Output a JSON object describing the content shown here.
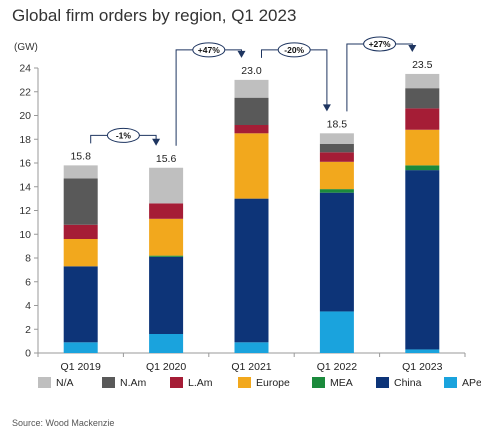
{
  "chart_data": {
    "type": "bar",
    "stacked": true,
    "title": "Global firm orders by region, Q1 2023",
    "ylabel": "(GW)",
    "xlabel": "",
    "ylim": [
      0,
      24
    ],
    "yticks": [
      0,
      2,
      4,
      6,
      8,
      10,
      12,
      14,
      16,
      18,
      20,
      22,
      24
    ],
    "grid": false,
    "legend_position": "bottom",
    "categories": [
      "Q1 2019",
      "Q1 2020",
      "Q1 2021",
      "Q1 2022",
      "Q1 2023"
    ],
    "totals": [
      15.8,
      15.6,
      23.0,
      18.5,
      23.5
    ],
    "total_labels": [
      "15.8",
      "15.6",
      "23.0",
      "18.5",
      "23.5"
    ],
    "series": [
      {
        "name": "APeC",
        "color": "#1aa3dd",
        "values": [
          0.9,
          1.6,
          0.9,
          3.5,
          0.3
        ]
      },
      {
        "name": "China",
        "color": "#0d3478",
        "values": [
          6.4,
          6.5,
          12.1,
          10.0,
          15.1
        ]
      },
      {
        "name": "MEA",
        "color": "#1b8a3c",
        "values": [
          0.0,
          0.1,
          0.0,
          0.3,
          0.4
        ]
      },
      {
        "name": "Europe",
        "color": "#f2a81d",
        "values": [
          2.3,
          3.1,
          5.5,
          2.3,
          3.0
        ]
      },
      {
        "name": "L.Am",
        "color": "#a51d36",
        "values": [
          1.2,
          1.3,
          0.7,
          0.8,
          1.8
        ]
      },
      {
        "name": "N.Am",
        "color": "#595959",
        "values": [
          3.9,
          0.0,
          2.3,
          0.7,
          1.7
        ]
      },
      {
        "name": "N/A",
        "color": "#bfbfbf",
        "values": [
          1.1,
          3.0,
          1.5,
          0.9,
          1.2
        ]
      }
    ],
    "legend_order": [
      "N/A",
      "N.Am",
      "L.Am",
      "Europe",
      "MEA",
      "China",
      "APeC"
    ],
    "annotations": [
      {
        "from": "Q1 2019",
        "to": "Q1 2020",
        "label": "-1%"
      },
      {
        "from": "Q1 2020",
        "to": "Q1 2021",
        "label": "+47%"
      },
      {
        "from": "Q1 2021",
        "to": "Q1 2022",
        "label": "-20%"
      },
      {
        "from": "Q1 2022",
        "to": "Q1 2023",
        "label": "+27%"
      }
    ]
  },
  "source": "Source: Wood Mackenzie"
}
